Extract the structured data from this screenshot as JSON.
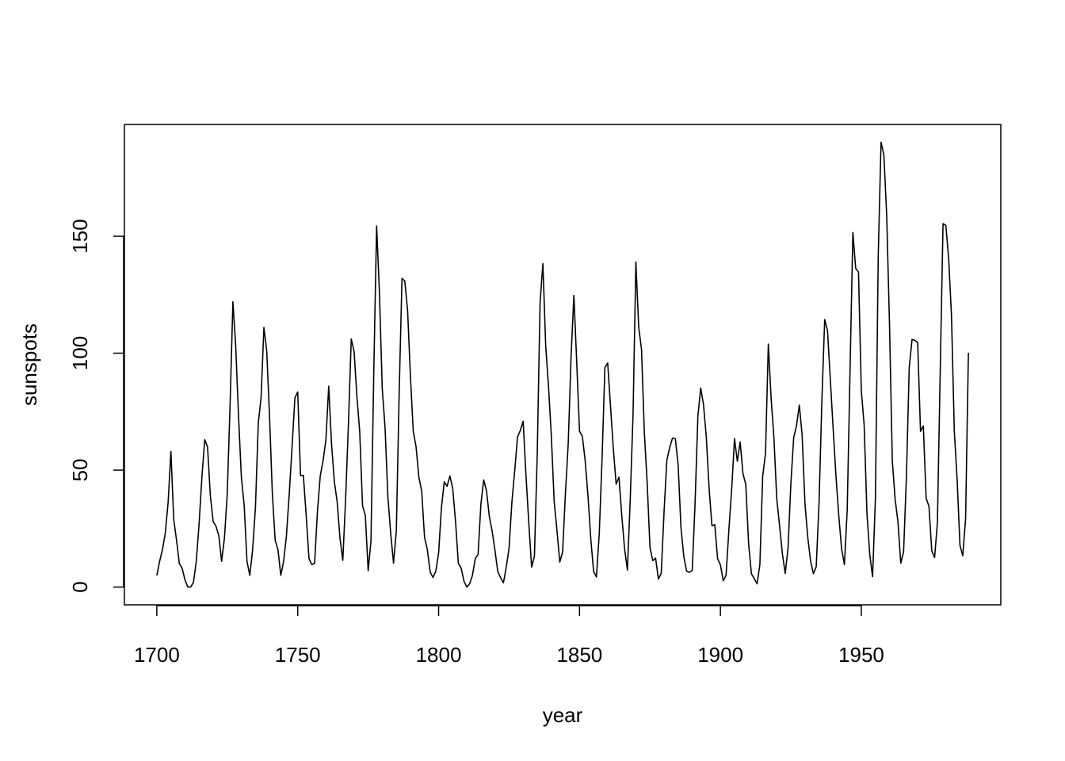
{
  "chart_data": {
    "type": "line",
    "title": "",
    "xlabel": "year",
    "ylabel": "sunspots",
    "x_start": 1700,
    "x_end": 1988,
    "xticks": [
      1700,
      1750,
      1800,
      1850,
      1900,
      1950
    ],
    "yticks": [
      0,
      50,
      100,
      150
    ],
    "xlim": [
      1688.5,
      1999.5
    ],
    "ylim": [
      -7.6,
      197.8
    ],
    "grid": false,
    "line_color": "#000000",
    "series": [
      {
        "values": [
          5,
          11,
          16,
          23,
          36,
          58,
          29,
          20,
          10,
          8,
          3,
          0,
          0,
          2,
          11,
          27,
          47,
          63,
          60,
          39,
          28,
          26,
          22,
          11,
          21,
          40,
          78,
          122,
          103,
          73,
          47,
          35,
          11,
          5,
          16,
          34,
          70,
          81,
          111,
          101,
          73,
          40,
          20,
          16,
          5,
          11,
          22,
          40,
          60,
          80.9,
          83.4,
          47.7,
          47.8,
          30.7,
          12.2,
          9.6,
          10.2,
          32.4,
          47.6,
          54,
          62.9,
          85.9,
          61.2,
          45.1,
          36.4,
          20.9,
          11.4,
          37.8,
          69.8,
          106.1,
          100.8,
          81.6,
          66.5,
          34.8,
          30.6,
          7,
          19.8,
          92.5,
          154.4,
          125.9,
          84.8,
          68.1,
          38.5,
          22.8,
          10.2,
          24.1,
          82.9,
          132,
          130.9,
          118.1,
          89.9,
          66.6,
          60,
          46.9,
          41,
          21.3,
          16,
          6.4,
          4.1,
          6.8,
          14.5,
          34,
          45,
          43.1,
          47.5,
          42.2,
          28.1,
          10.1,
          8.1,
          2.5,
          0,
          1.4,
          5,
          12.2,
          13.9,
          35.4,
          45.8,
          41.1,
          30.1,
          23.9,
          15.6,
          6.6,
          4,
          1.8,
          8.5,
          16.6,
          36.3,
          49.6,
          64.2,
          67,
          70.9,
          47.8,
          27.5,
          8.5,
          13.2,
          56.9,
          121.5,
          138.3,
          103.2,
          85.7,
          64.6,
          36.7,
          24.2,
          10.7,
          15,
          40.1,
          61.5,
          98.5,
          124.7,
          96.3,
          66.6,
          64.5,
          54.1,
          39,
          20.6,
          6.7,
          4.3,
          22.7,
          54.8,
          93.8,
          95.8,
          77.2,
          59.1,
          44,
          47,
          30.5,
          16.3,
          7.3,
          37.6,
          74,
          139,
          111.2,
          101.6,
          66.2,
          44.7,
          17,
          11.3,
          12.4,
          3.4,
          6,
          32.3,
          54.3,
          59.7,
          63.7,
          63.5,
          52.2,
          25.4,
          13.1,
          6.8,
          6.3,
          7.1,
          35.6,
          73,
          85.1,
          78,
          64,
          41.8,
          26.2,
          26.7,
          12.1,
          9.5,
          2.7,
          5,
          24.4,
          42,
          63.5,
          53.8,
          62,
          48.5,
          43.9,
          18.6,
          5.7,
          3.6,
          1.4,
          9.6,
          47.4,
          57.1,
          103.9,
          80.6,
          63.6,
          37.6,
          26.1,
          14.2,
          5.8,
          16.7,
          44.3,
          63.9,
          69,
          77.8,
          64.9,
          35.7,
          21.2,
          11.1,
          5.7,
          8.7,
          36.1,
          79.7,
          114.4,
          109.6,
          88.8,
          67.8,
          47.5,
          30.6,
          16.3,
          9.6,
          33.2,
          92.6,
          151.6,
          136.3,
          134.7,
          83.9,
          69.4,
          31.5,
          13.9,
          4.4,
          38,
          141.7,
          190.2,
          184.8,
          159,
          112.3,
          53.9,
          37.5,
          27.9,
          10.2,
          15.1,
          47,
          93.8,
          105.9,
          105.5,
          104.5,
          66.6,
          68.9,
          38,
          34.5,
          15.5,
          12.6,
          27.5,
          92.5,
          155.4,
          154.6,
          140.4,
          115.9,
          66.6,
          45.9,
          17.9,
          13.4,
          29.2,
          100.2
        ]
      }
    ]
  }
}
